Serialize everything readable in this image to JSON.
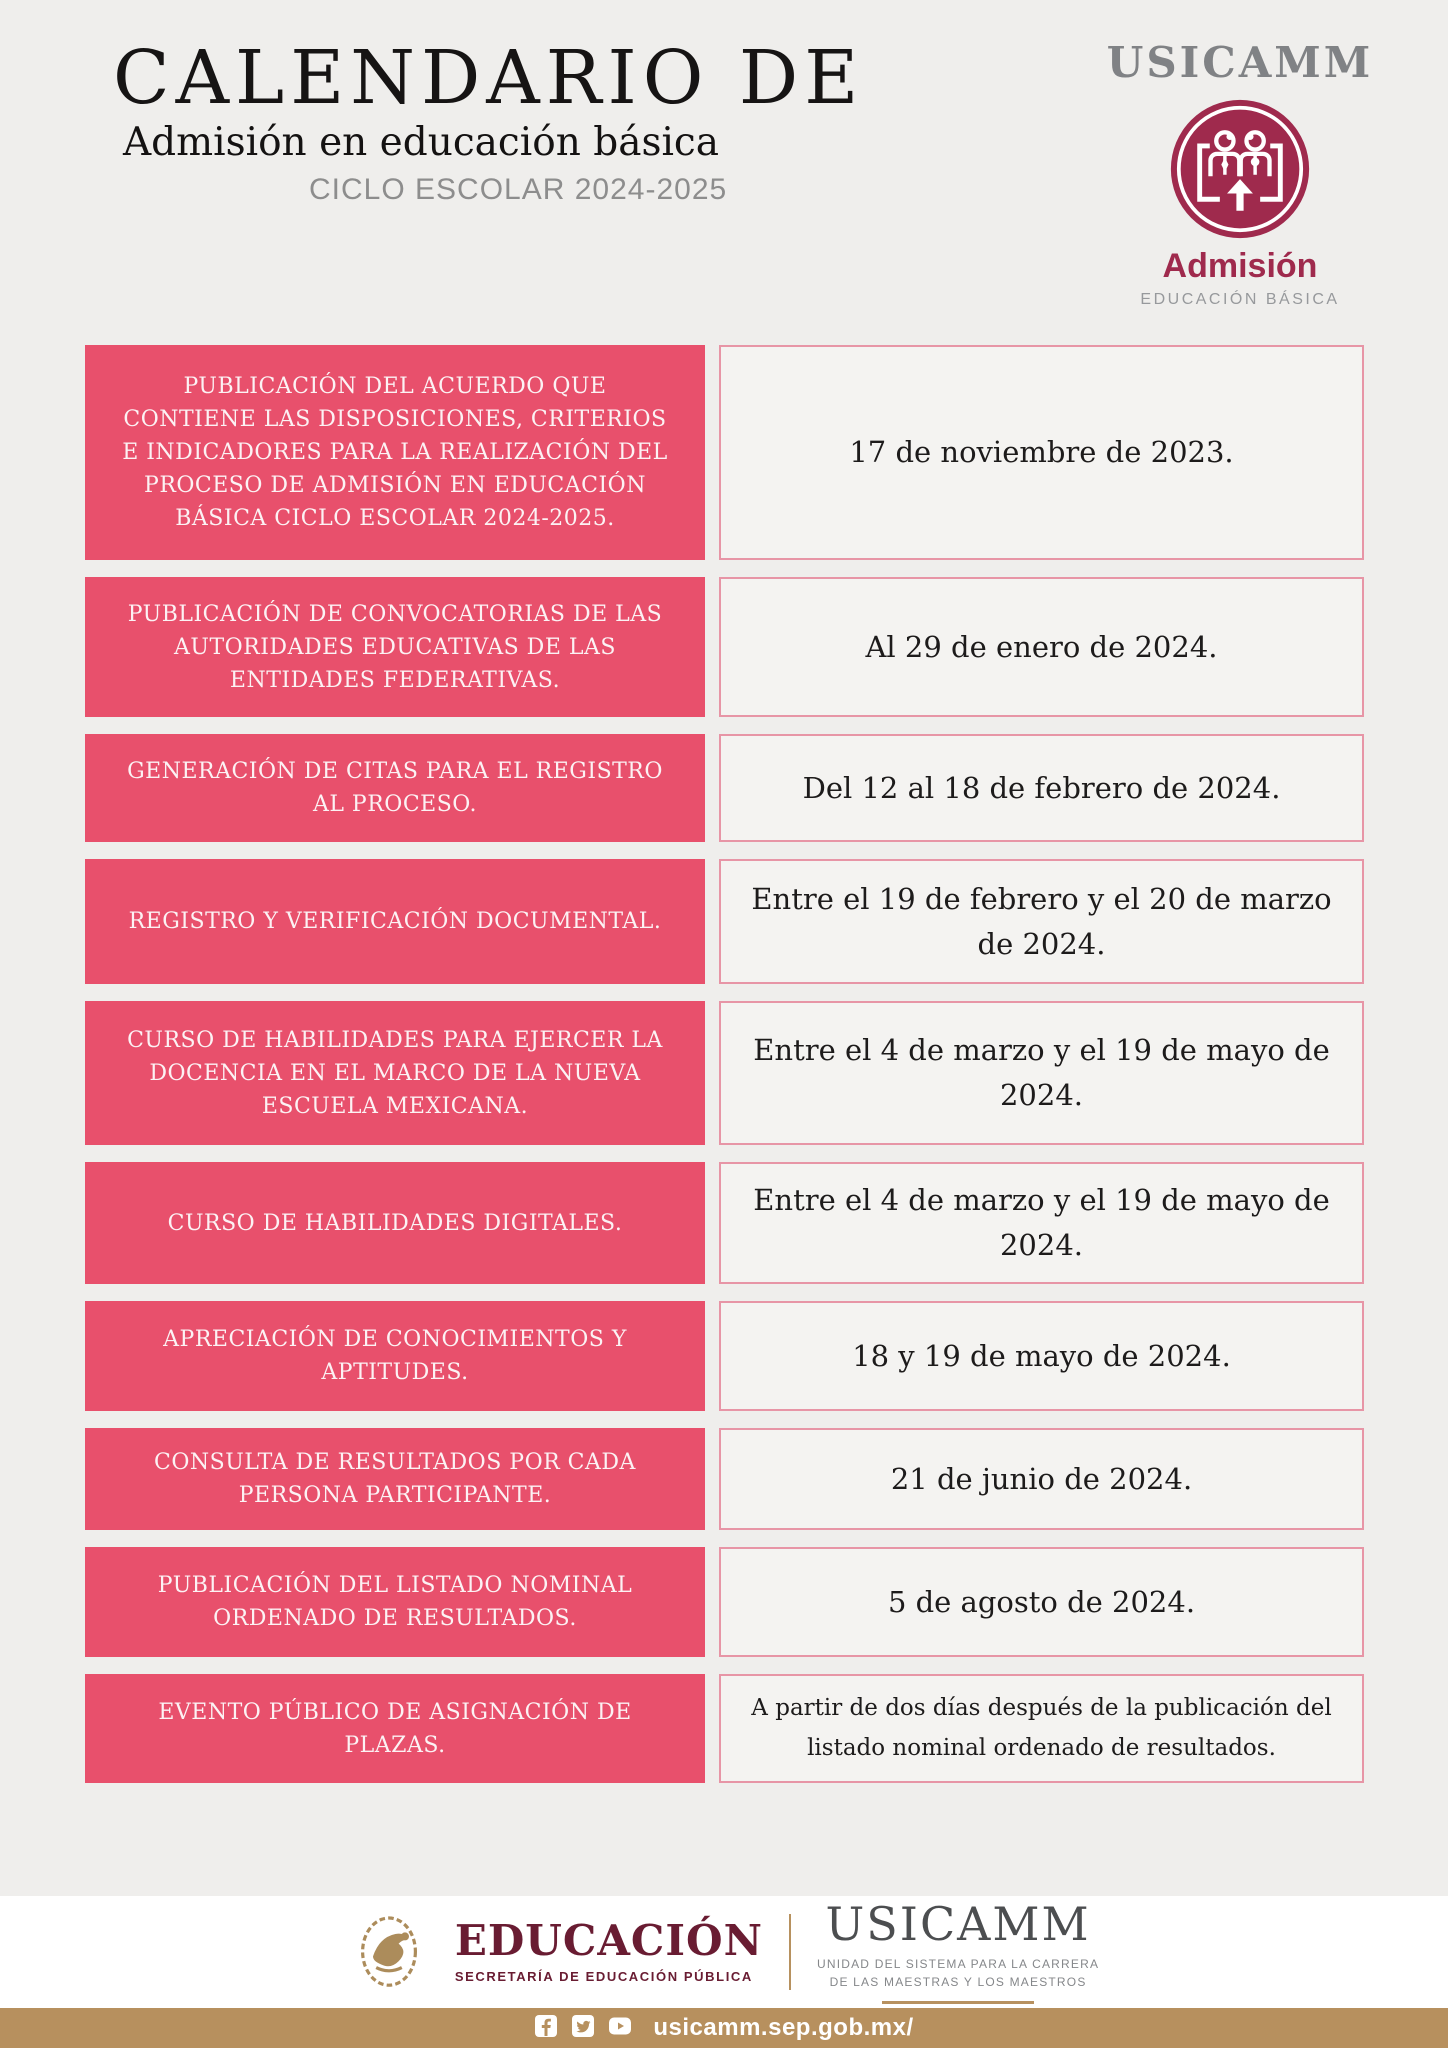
{
  "colors": {
    "page_bg": "#efeeec",
    "pink": "#e8506c",
    "pink_border": "#e795a6",
    "cell_bg": "#f4f3f1",
    "crimson": "#9f2a4d",
    "maroon": "#691c32",
    "gold": "#b7905e",
    "gray_text": "#808285"
  },
  "header": {
    "title": "CALENDARIO DE",
    "subtitle": "Admisión en educación básica",
    "cycle": "CICLO ESCOLAR 2024-2025",
    "logo": {
      "org": "USICAMM",
      "badge_title": "Admisión",
      "badge_subtitle": "EDUCACIÓN BÁSICA"
    }
  },
  "schedule": {
    "rows": [
      {
        "activity": "PUBLICACIÓN DEL ACUERDO QUE CONTIENE LAS DISPOSICIONES, CRITERIOS E INDICADORES PARA LA REALIZACIÓN DEL PROCESO DE ADMISIÓN EN EDUCACIÓN BÁSICA CICLO ESCOLAR 2024-2025.",
        "date": "17 de noviembre de 2023."
      },
      {
        "activity": "PUBLICACIÓN DE CONVOCATORIAS DE LAS AUTORIDADES EDUCATIVAS DE LAS ENTIDADES FEDERATIVAS.",
        "date": "Al 29 de enero de 2024."
      },
      {
        "activity": "GENERACIÓN DE CITAS PARA EL REGISTRO AL PROCESO.",
        "date": "Del 12 al 18 de febrero de 2024."
      },
      {
        "activity": "REGISTRO Y VERIFICACIÓN DOCUMENTAL.",
        "date": "Entre el 19 de febrero y el 20 de marzo de 2024."
      },
      {
        "activity": "CURSO DE HABILIDADES PARA EJERCER LA DOCENCIA EN EL MARCO DE LA NUEVA ESCUELA MEXICANA.",
        "date": "Entre el 4 de marzo y el 19 de mayo de 2024."
      },
      {
        "activity": "CURSO DE HABILIDADES DIGITALES.",
        "date": "Entre el 4 de marzo y el 19 de mayo de 2024."
      },
      {
        "activity": "APRECIACIÓN DE CONOCIMIENTOS Y APTITUDES.",
        "date": "18 y 19 de mayo de 2024."
      },
      {
        "activity": "CONSULTA DE RESULTADOS POR CADA PERSONA PARTICIPANTE.",
        "date": "21 de junio de 2024."
      },
      {
        "activity": "PUBLICACIÓN DEL LISTADO NOMINAL ORDENADO DE RESULTADOS.",
        "date": "5 de agosto de 2024."
      },
      {
        "activity": "EVENTO PÚBLICO DE ASIGNACIÓN DE PLAZAS.",
        "date": "A partir de dos días después de la publicación del listado nominal ordenado de resultados."
      }
    ]
  },
  "footer": {
    "sep": {
      "name": "EDUCACIÓN",
      "sub": "SECRETARÍA DE EDUCACIÓN PÚBLICA"
    },
    "usicamm": {
      "name": "USICAMM",
      "sub_line1": "UNIDAD DEL SISTEMA PARA LA CARRERA",
      "sub_line2": "DE LAS MAESTRAS Y LOS MAESTROS"
    },
    "bar": {
      "url": "usicamm.sep.gob.mx/"
    }
  }
}
